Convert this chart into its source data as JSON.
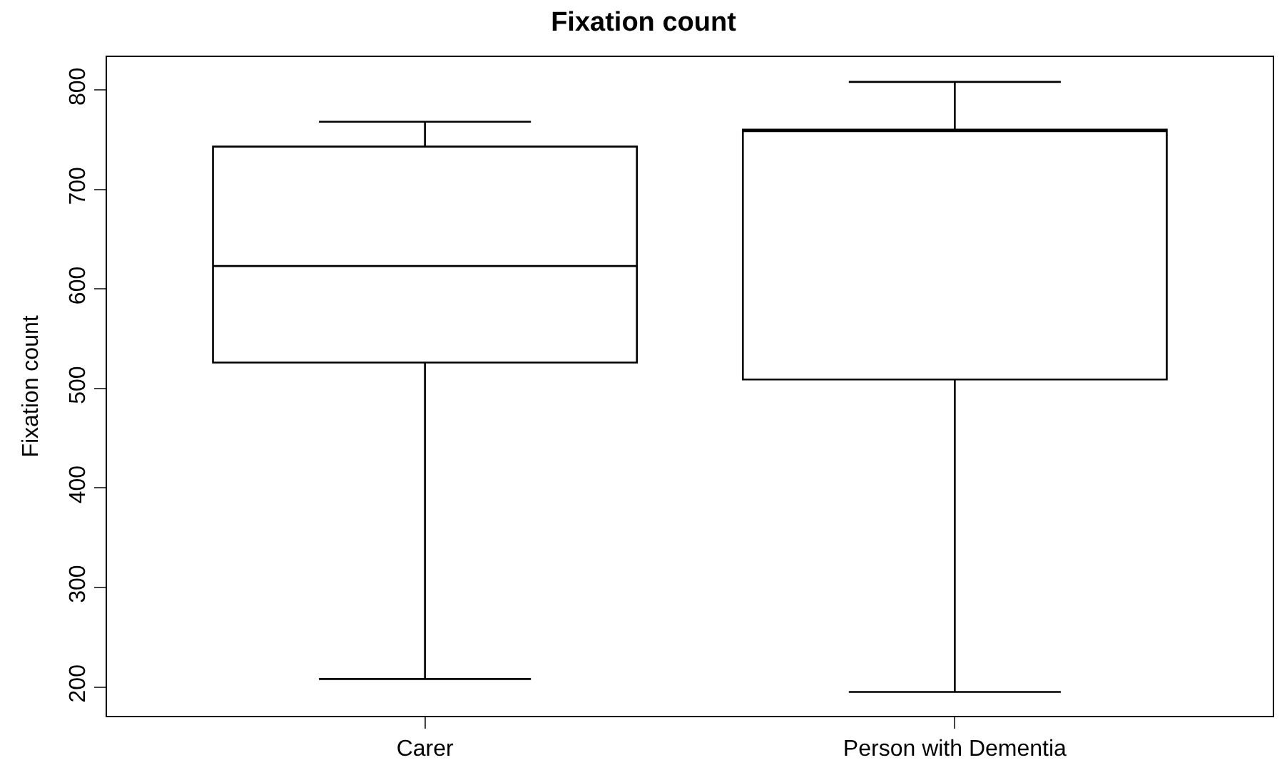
{
  "chart_data": {
    "type": "box",
    "title": "Fixation count",
    "ylabel": "Fixation count",
    "categories": [
      "Carer",
      "Person with Dementia"
    ],
    "boxes": [
      {
        "low": 208,
        "q1": 526,
        "median": 623,
        "q3": 743,
        "high": 768
      },
      {
        "low": 195,
        "q1": 509,
        "median": 760,
        "q3": 760,
        "high": 808
      }
    ],
    "ylim": [
      171,
      833
    ],
    "yticks": [
      200,
      300,
      400,
      500,
      600,
      700,
      800
    ]
  }
}
